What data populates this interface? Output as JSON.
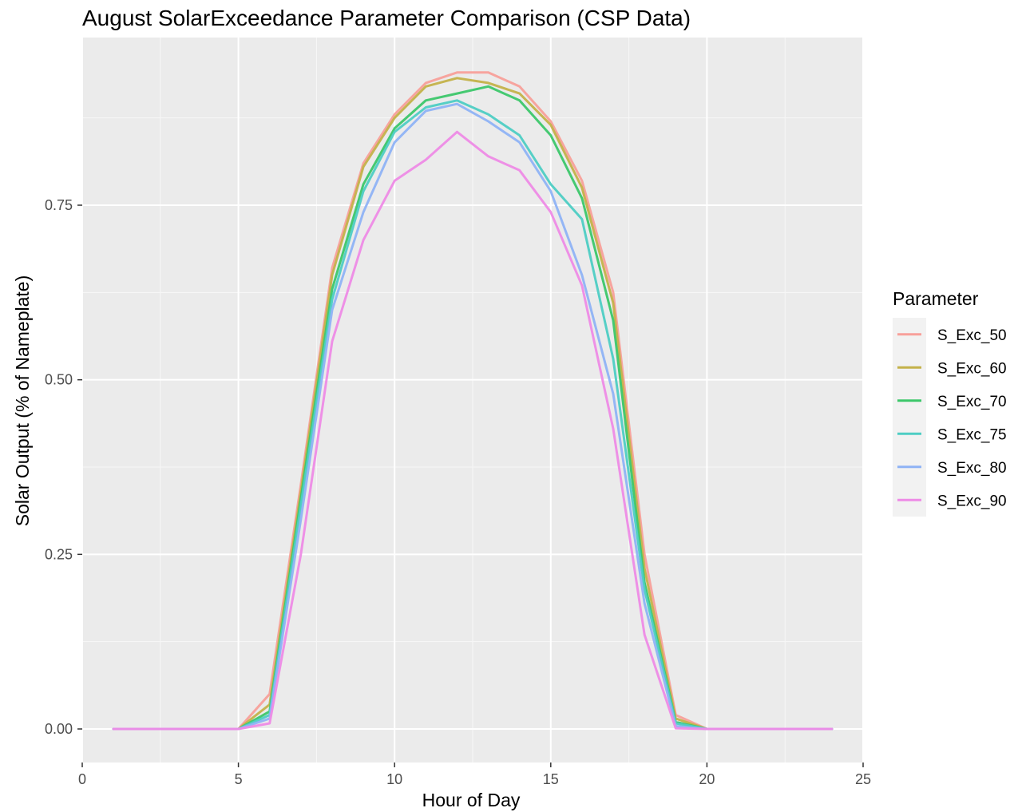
{
  "chart_data": {
    "type": "line",
    "title": "August SolarExceedance Parameter Comparison (CSP Data)",
    "xlabel": "Hour of Day",
    "ylabel": "Solar Output (% of Nameplate)",
    "xlim": [
      0,
      25
    ],
    "ylim": [
      0,
      0.95
    ],
    "x_ticks": [
      0,
      5,
      10,
      15,
      20,
      25
    ],
    "y_ticks": [
      0.0,
      0.25,
      0.5,
      0.75
    ],
    "y_tick_labels": [
      "0.00",
      "0.25",
      "0.50",
      "0.75"
    ],
    "grid": true,
    "legend": {
      "title": "Parameter",
      "position": "right"
    },
    "x": [
      1,
      2,
      3,
      4,
      5,
      6,
      7,
      8,
      9,
      10,
      11,
      12,
      13,
      14,
      15,
      16,
      17,
      18,
      19,
      20,
      21,
      22,
      23,
      24
    ],
    "series": [
      {
        "name": "S_Exc_50",
        "color": "#f8a09a",
        "values": [
          0,
          0,
          0,
          0,
          0,
          0.05,
          0.35,
          0.66,
          0.81,
          0.88,
          0.925,
          0.94,
          0.94,
          0.92,
          0.87,
          0.785,
          0.625,
          0.25,
          0.02,
          0,
          0,
          0,
          0,
          0
        ]
      },
      {
        "name": "S_Exc_60",
        "color": "#c4b24a",
        "values": [
          0,
          0,
          0,
          0,
          0,
          0.035,
          0.34,
          0.65,
          0.805,
          0.875,
          0.92,
          0.932,
          0.925,
          0.91,
          0.865,
          0.775,
          0.61,
          0.23,
          0.015,
          0,
          0,
          0,
          0,
          0
        ]
      },
      {
        "name": "S_Exc_70",
        "color": "#3cc76a",
        "values": [
          0,
          0,
          0,
          0,
          0,
          0.025,
          0.33,
          0.63,
          0.78,
          0.86,
          0.9,
          0.91,
          0.92,
          0.9,
          0.85,
          0.76,
          0.585,
          0.21,
          0.01,
          0,
          0,
          0,
          0,
          0
        ]
      },
      {
        "name": "S_Exc_75",
        "color": "#4ecdc4",
        "values": [
          0,
          0,
          0,
          0,
          0,
          0.02,
          0.32,
          0.615,
          0.77,
          0.855,
          0.89,
          0.9,
          0.88,
          0.85,
          0.78,
          0.73,
          0.53,
          0.2,
          0.008,
          0,
          0,
          0,
          0,
          0
        ]
      },
      {
        "name": "S_Exc_80",
        "color": "#8fb3f5",
        "values": [
          0,
          0,
          0,
          0,
          0,
          0.015,
          0.3,
          0.6,
          0.74,
          0.84,
          0.885,
          0.895,
          0.87,
          0.84,
          0.77,
          0.65,
          0.48,
          0.18,
          0.004,
          0,
          0,
          0,
          0,
          0
        ]
      },
      {
        "name": "S_Exc_90",
        "color": "#ee8be6",
        "values": [
          0,
          0,
          0,
          0,
          0,
          0.008,
          0.25,
          0.555,
          0.7,
          0.785,
          0.815,
          0.855,
          0.82,
          0.8,
          0.74,
          0.635,
          0.43,
          0.135,
          0.001,
          0,
          0,
          0,
          0,
          0
        ]
      }
    ]
  }
}
